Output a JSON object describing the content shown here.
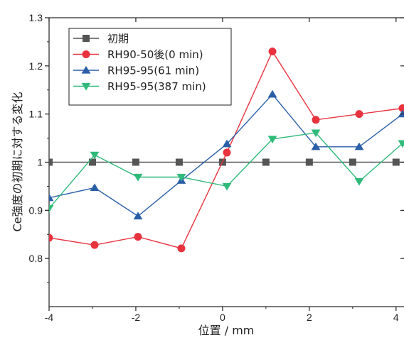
{
  "chart_data": {
    "type": "line",
    "xlabel": "位置 / mm",
    "ylabel": "Ce強度の初期に対する変化",
    "xlim": [
      -4,
      4.2
    ],
    "ylim": [
      0.7,
      1.3
    ],
    "x_ticks": [
      -4,
      -2,
      0,
      2,
      4
    ],
    "y_ticks": [
      0.8,
      0.9,
      1,
      1.1,
      1.2,
      1.3
    ],
    "grid": false,
    "legend_position": "top-left",
    "series": [
      {
        "name": "初期",
        "color": "#555555",
        "marker": "square",
        "x": [
          -4,
          -3,
          -2,
          -1,
          0,
          1,
          2,
          3,
          4,
          5
        ],
        "y": [
          1,
          1,
          1,
          1,
          1,
          1,
          1,
          1,
          1,
          1
        ]
      },
      {
        "name": "RH90-50後(0 min)",
        "color": "#e8333e",
        "marker": "circle",
        "x": [
          -4,
          -2.95,
          -1.95,
          -0.95,
          0.1,
          1.15,
          2.15,
          3.15,
          4.15
        ],
        "y": [
          0.843,
          0.828,
          0.845,
          0.821,
          1.02,
          1.23,
          1.088,
          1.1,
          1.112
        ]
      },
      {
        "name": "RH95-95(61 min)",
        "color": "#2a5fa8",
        "marker": "triangle-up",
        "x": [
          -4,
          -2.95,
          -1.95,
          -0.95,
          0.1,
          1.15,
          2.15,
          3.15,
          4.15
        ],
        "y": [
          0.926,
          0.947,
          0.888,
          0.962,
          1.038,
          1.141,
          1.032,
          1.032,
          1.1
        ]
      },
      {
        "name": "RH95-95(387 min)",
        "color": "#2fba7a",
        "marker": "triangle-down",
        "x": [
          -4,
          -2.95,
          -1.95,
          -0.95,
          0.1,
          1.15,
          2.15,
          3.15,
          4.15
        ],
        "y": [
          0.904,
          1.015,
          0.969,
          0.969,
          0.95,
          1.048,
          1.061,
          0.96,
          1.039
        ]
      }
    ]
  }
}
